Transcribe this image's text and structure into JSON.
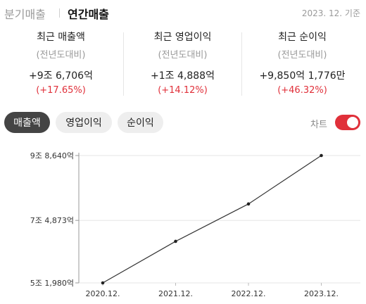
{
  "header": {
    "tab_quarter": "분기매출",
    "tab_annual": "연간매출",
    "as_of": "2023. 12. 기준"
  },
  "summary": [
    {
      "name": "최근 매출액",
      "sub": "(전년도대비)",
      "value": "+9조 6,706억",
      "change": "(+17.65%)"
    },
    {
      "name": "최근 영업이익",
      "sub": "(전년도대비)",
      "value": "+1조 4,888억",
      "change": "(+14.12%)"
    },
    {
      "name": "최근 순이익",
      "sub": "(전년도대비)",
      "value": "+9,850억 1,776만",
      "change": "(+46.32%)"
    }
  ],
  "filters": {
    "revenue": "매출액",
    "operating_profit": "영업이익",
    "net_profit": "순이익",
    "chart_toggle_label": "차트",
    "chart_toggle_on": true
  },
  "colors": {
    "accent_red": "#e0303a",
    "active_pill": "#444444",
    "line": "#333333"
  },
  "chart_data": {
    "type": "line",
    "categories": [
      "2020.12.",
      "2021.12.",
      "2022.12.",
      "2023.12."
    ],
    "series": [
      {
        "values": [
          51980,
          67200,
          80900,
          98640
        ]
      }
    ],
    "y_ticks": [
      51980,
      74873,
      98640
    ],
    "y_tick_labels": [
      "5조 1,980억",
      "7조 4,873억",
      "9조 8,640억"
    ],
    "ylim": [
      51980,
      98640
    ],
    "unit": "억",
    "grid": "horizontal"
  }
}
